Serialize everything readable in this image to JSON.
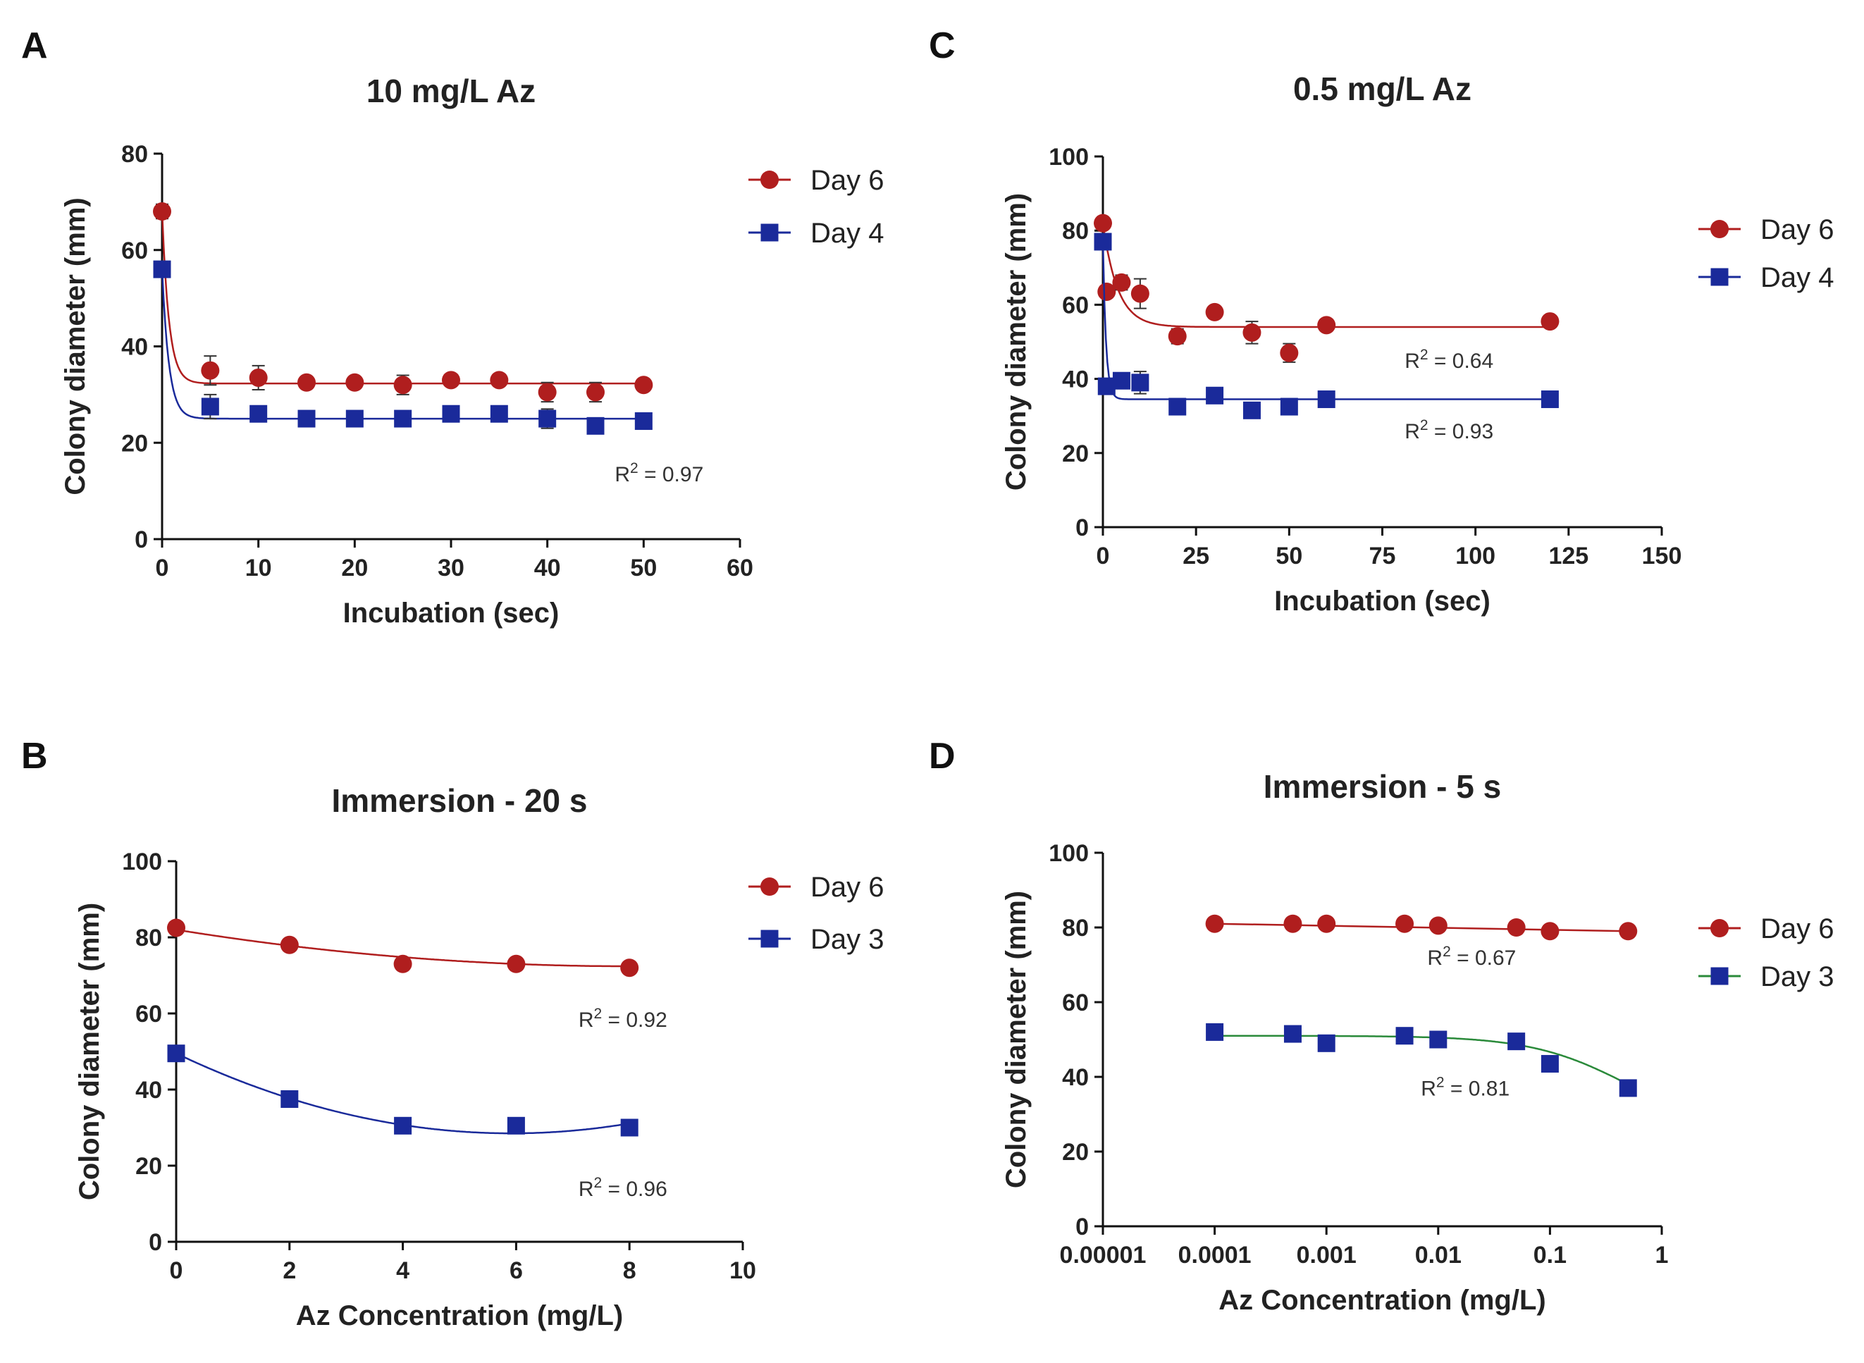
{
  "chart_data": [
    {
      "id": "A",
      "panel_label": "A",
      "type": "scatter",
      "title": "10 mg/L Az",
      "xlabel": "Incubation (sec)",
      "ylabel": "Colony diameter (mm)",
      "xscale": "linear",
      "xlim": [
        0,
        60
      ],
      "ylim": [
        0,
        80
      ],
      "xticks": [
        0,
        10,
        20,
        30,
        40,
        50,
        60
      ],
      "yticks": [
        0,
        20,
        40,
        60,
        80
      ],
      "legend_position": "top-right",
      "series": [
        {
          "name": "Day 6",
          "color": "#b01e1e",
          "marker": "circle",
          "x": [
            0,
            5,
            10,
            15,
            20,
            25,
            30,
            35,
            40,
            45,
            50
          ],
          "y": [
            68,
            35,
            33.5,
            32.5,
            32.5,
            32,
            33,
            33,
            30.5,
            30.5,
            32
          ],
          "err": [
            1.5,
            3,
            2.5,
            0,
            0,
            2,
            0,
            0,
            2,
            2,
            0
          ],
          "fit": {
            "kind": "exp_decay",
            "plateau": 32.3,
            "y0": 68,
            "k": 1.4
          }
        },
        {
          "name": "Day 4",
          "color": "#1a2a9a",
          "marker": "square",
          "x": [
            0,
            5,
            10,
            15,
            20,
            25,
            30,
            35,
            40,
            45,
            50
          ],
          "y": [
            56,
            27.5,
            26,
            25,
            25,
            25,
            26,
            26,
            25,
            23.5,
            24.5
          ],
          "err": [
            0,
            2.5,
            0,
            0,
            0,
            0,
            0,
            0,
            2,
            0,
            0
          ],
          "fit": {
            "kind": "exp_decay",
            "plateau": 25,
            "y0": 56,
            "k": 1.4
          }
        }
      ],
      "annotations": [
        {
          "text": "R",
          "sup": "2",
          "rest": " = 0.97",
          "x": 47,
          "y": 12
        }
      ]
    },
    {
      "id": "C",
      "panel_label": "C",
      "type": "scatter",
      "title": "0.5 mg/L Az",
      "xlabel": "Incubation (sec)",
      "ylabel": "Colony diameter (mm)",
      "xscale": "linear",
      "xlim": [
        0,
        150
      ],
      "ylim": [
        0,
        100
      ],
      "xticks": [
        0,
        25,
        50,
        75,
        100,
        125,
        150
      ],
      "yticks": [
        0,
        20,
        40,
        60,
        80,
        100
      ],
      "legend_position": "right",
      "series": [
        {
          "name": "Day 6",
          "color": "#b01e1e",
          "marker": "circle",
          "x": [
            0,
            1,
            5,
            10,
            20,
            30,
            40,
            50,
            60,
            120
          ],
          "y": [
            82,
            63.5,
            66,
            63,
            51.5,
            58,
            52.5,
            47,
            54.5,
            55.5
          ],
          "err": [
            0,
            0,
            2,
            4,
            2,
            1.5,
            3,
            2.5,
            0,
            0
          ],
          "fit": {
            "kind": "exp_decay",
            "plateau": 54,
            "y0": 82,
            "k": 0.25
          }
        },
        {
          "name": "Day 4",
          "color": "#1a2a9a",
          "marker": "square",
          "x": [
            0,
            1,
            5,
            10,
            20,
            30,
            40,
            50,
            60,
            120
          ],
          "y": [
            77,
            38,
            39.5,
            39,
            32.5,
            35.5,
            31.5,
            32.5,
            34.5,
            34.5
          ],
          "err": [
            0,
            0,
            0,
            3,
            0,
            0,
            0,
            0,
            0,
            0
          ],
          "fit": {
            "kind": "exp_decay",
            "plateau": 34.5,
            "y0": 77,
            "k": 1.2
          }
        }
      ],
      "annotations": [
        {
          "text": "R",
          "sup": "2",
          "rest": " = 0.64",
          "x": 81,
          "y": 43
        },
        {
          "text": "R",
          "sup": "2",
          "rest": " = 0.93",
          "x": 81,
          "y": 24
        }
      ]
    },
    {
      "id": "B",
      "panel_label": "B",
      "type": "scatter",
      "title": "Immersion - 20 s",
      "xlabel": "Az Concentration (mg/L)",
      "ylabel": "Colony diameter (mm)",
      "xscale": "linear",
      "xlim": [
        0,
        10
      ],
      "ylim": [
        0,
        100
      ],
      "xticks": [
        0,
        2,
        4,
        6,
        8,
        10
      ],
      "yticks": [
        0,
        20,
        40,
        60,
        80,
        100
      ],
      "legend_position": "top-right",
      "series": [
        {
          "name": "Day 6",
          "color": "#b01e1e",
          "marker": "circle",
          "x": [
            0,
            2,
            4,
            6,
            8
          ],
          "y": [
            82.5,
            78,
            73,
            73,
            72
          ],
          "err": [
            0,
            0,
            0,
            0,
            0
          ],
          "fit": {
            "kind": "quadratic",
            "a": 0.15,
            "b": -2.4,
            "c": 82
          }
        },
        {
          "name": "Day 3",
          "color": "#1a2a9a",
          "marker": "square",
          "x": [
            0,
            2,
            4,
            6,
            8
          ],
          "y": [
            49.5,
            37.5,
            30.5,
            30.5,
            30
          ],
          "err": [
            0,
            0,
            0,
            0,
            0
          ],
          "fit": {
            "kind": "quadratic",
            "a": 0.6,
            "b": -7.1,
            "c": 49.5
          }
        }
      ],
      "annotations": [
        {
          "text": "R",
          "sup": "2",
          "rest": " = 0.92",
          "x": 7.1,
          "y": 56.5
        },
        {
          "text": "R",
          "sup": "2",
          "rest": " = 0.96",
          "x": 7.1,
          "y": 12
        }
      ]
    },
    {
      "id": "D",
      "panel_label": "D",
      "type": "scatter",
      "title": "Immersion - 5 s",
      "xlabel": "Az Concentration (mg/L)",
      "ylabel": "Colony diameter (mm)",
      "xscale": "log",
      "xlim": [
        1e-05,
        1
      ],
      "ylim": [
        0,
        100
      ],
      "xticks": [
        1e-05,
        0.0001,
        0.001,
        0.01,
        0.1,
        1
      ],
      "xtick_labels": [
        "0.00001",
        "0.0001",
        "0.001",
        "0.01",
        "0.1",
        "1"
      ],
      "yticks": [
        0,
        20,
        40,
        60,
        80,
        100
      ],
      "legend_position": "right",
      "series": [
        {
          "name": "Day 6",
          "color": "#b01e1e",
          "marker": "circle",
          "x": [
            0.0001,
            0.0005,
            0.001,
            0.005,
            0.01,
            0.05,
            0.1,
            0.5
          ],
          "y": [
            81,
            81,
            81,
            81,
            80.5,
            80,
            79,
            79
          ],
          "err": [
            0,
            0,
            0,
            0,
            0,
            0,
            0,
            0
          ],
          "fit": {
            "kind": "linear",
            "y_start": 81,
            "y_end": 79
          }
        },
        {
          "name": "Day 3",
          "color": "#1a2a9a",
          "line_color": "#2a8a3a",
          "marker": "square",
          "x": [
            0.0001,
            0.0005,
            0.001,
            0.005,
            0.01,
            0.05,
            0.1,
            0.5
          ],
          "y": [
            52,
            51.5,
            49,
            51,
            50,
            49.5,
            43.5,
            37
          ],
          "err": [
            0,
            0,
            0,
            0,
            0,
            0,
            0,
            0
          ],
          "fit": {
            "kind": "sigmoid",
            "top": 51,
            "bottom": 25,
            "logec50": -0.3,
            "slope": 1.0
          }
        }
      ],
      "annotations": [
        {
          "text": "R",
          "sup": "2",
          "rest": " = 0.67",
          "x": 0.008,
          "y": 70
        },
        {
          "text": "R",
          "sup": "2",
          "rest": " = 0.81",
          "x": 0.007,
          "y": 35
        }
      ]
    }
  ]
}
